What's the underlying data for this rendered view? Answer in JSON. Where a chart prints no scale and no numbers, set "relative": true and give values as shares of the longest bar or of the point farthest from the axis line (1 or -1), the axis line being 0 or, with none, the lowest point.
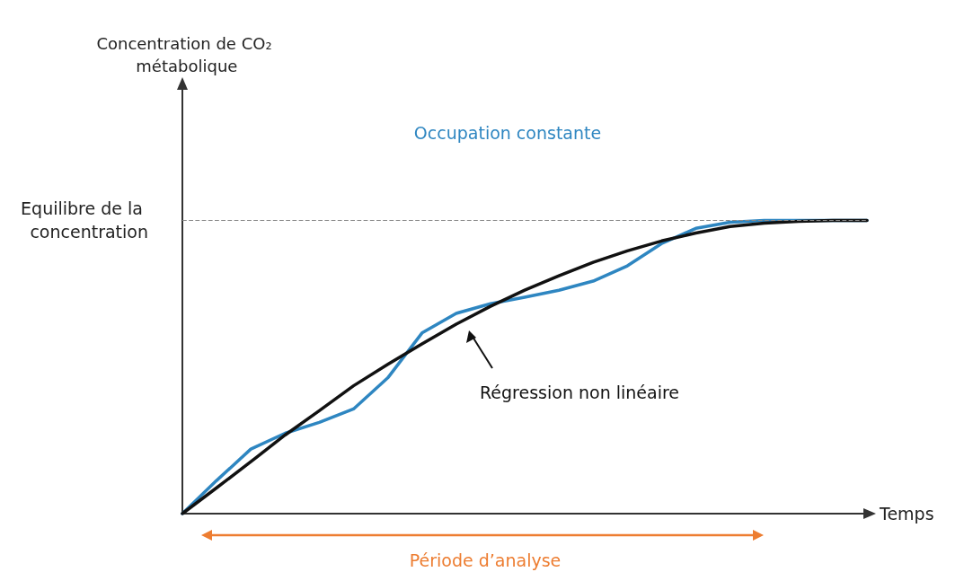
{
  "chart_data": {
    "type": "line",
    "relative": true,
    "xlabel": "Temps",
    "categories": [
      null,
      null,
      null,
      null,
      null,
      null,
      null,
      null,
      null,
      null,
      null,
      null,
      null,
      null,
      null,
      null,
      null,
      null,
      null,
      null,
      null
    ],
    "series": [
      {
        "name": "Occupation constante",
        "color": "#2e86c1",
        "values": [
          0,
          0.113,
          0.22,
          0.274,
          0.311,
          0.357,
          0.463,
          0.616,
          0.683,
          0.716,
          0.738,
          0.762,
          0.793,
          0.845,
          0.921,
          0.973,
          0.994,
          1,
          1,
          1,
          1
        ]
      },
      {
        "color": "#111111",
        "values": [
          0,
          0.088,
          0.177,
          0.268,
          0.351,
          0.436,
          0.509,
          0.579,
          0.646,
          0.707,
          0.762,
          0.811,
          0.857,
          0.896,
          0.93,
          0.957,
          0.979,
          0.991,
          0.997,
          1,
          1
        ]
      }
    ],
    "ref_lines": [
      {
        "axis": "y",
        "value": 1,
        "label": "Equilibre de la concentration",
        "color": "#888888",
        "line_style": "dashed"
      }
    ],
    "annotations": [
      "Concentration de CO₂ métabolique",
      "Régression non linéaire",
      "Période d’analyse"
    ],
    "grid": false,
    "legend": false,
    "marker": "none",
    "line_style": "solid"
  }
}
